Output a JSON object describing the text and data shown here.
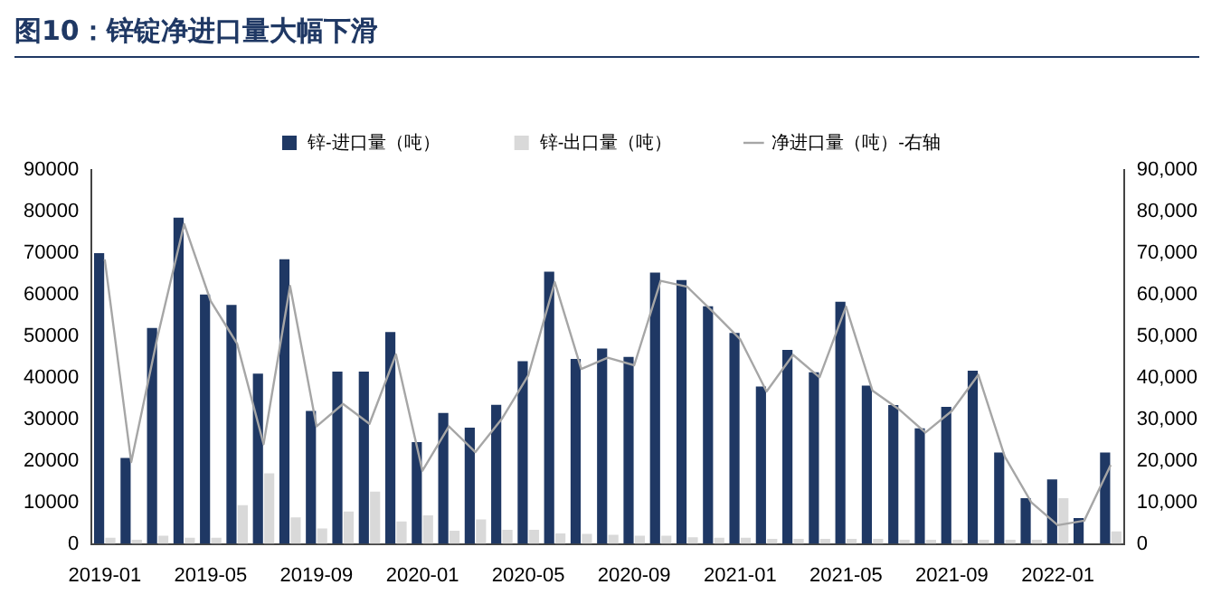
{
  "chart_data": {
    "type": "bar",
    "title": "图10：锌锭净进口量大幅下滑",
    "categories": [
      "2019-01",
      null,
      null,
      null,
      "2019-05",
      null,
      null,
      null,
      "2019-09",
      null,
      null,
      null,
      "2020-01",
      null,
      null,
      null,
      "2020-05",
      null,
      null,
      null,
      "2020-09",
      null,
      null,
      null,
      "2021-01",
      null,
      null,
      null,
      "2021-05",
      null,
      null,
      null,
      "2021-09",
      null,
      null,
      null,
      "2022-01",
      null,
      null
    ],
    "series": [
      {
        "name": "锌-进口量（吨）",
        "color": "#1f3864",
        "values": [
          70000,
          20700,
          52000,
          78500,
          60000,
          57500,
          41000,
          68500,
          32000,
          41500,
          41500,
          51000,
          24500,
          31500,
          28000,
          33500,
          44000,
          65500,
          44500,
          47000,
          45000,
          65300,
          63500,
          57200,
          50800,
          37900,
          46700,
          41300,
          58300,
          38100,
          33400,
          27800,
          33000,
          41700,
          22000,
          11000,
          15500,
          6200,
          22000
        ]
      },
      {
        "name": "锌-出口量（吨）",
        "color": "#d9d9d9",
        "values": [
          1500,
          1000,
          2000,
          1500,
          1500,
          9300,
          17000,
          6400,
          3700,
          7800,
          12600,
          5400,
          6900,
          3200,
          5900,
          3400,
          3400,
          2500,
          2400,
          2200,
          2000,
          2000,
          1600,
          1500,
          1500,
          1200,
          1200,
          1200,
          1200,
          1200,
          1000,
          1000,
          1000,
          1000,
          1000,
          1000,
          11000,
          null,
          3000
        ]
      },
      {
        "name": "净进口量（吨）-右轴",
        "color": "#a6a6a6",
        "type": "line",
        "axis": "y2",
        "values": [
          68500,
          19700,
          50000,
          77000,
          58500,
          48200,
          24000,
          62100,
          28300,
          33700,
          28900,
          45600,
          17600,
          28300,
          22100,
          30100,
          40600,
          63000,
          42100,
          44800,
          43000,
          63300,
          61900,
          55700,
          49300,
          36700,
          45500,
          40100,
          57100,
          36900,
          32400,
          26800,
          32000,
          40700,
          21000,
          10000,
          4500,
          5600,
          19000
        ]
      }
    ],
    "ylim": [
      0,
      90000
    ],
    "yticks": [
      0,
      10000,
      20000,
      30000,
      40000,
      50000,
      60000,
      70000,
      80000,
      90000
    ],
    "y2lim": [
      0,
      90000
    ],
    "y2ticks": [
      {
        "value": 0,
        "label": "0"
      },
      {
        "value": 10000,
        "label": "10,000"
      },
      {
        "value": 20000,
        "label": "20,000"
      },
      {
        "value": 30000,
        "label": "30,000"
      },
      {
        "value": 40000,
        "label": "40,000"
      },
      {
        "value": 50000,
        "label": "50,000"
      },
      {
        "value": 60000,
        "label": "60,000"
      },
      {
        "value": 70000,
        "label": "70,000"
      },
      {
        "value": 80000,
        "label": "80,000"
      },
      {
        "value": 90000,
        "label": "90,000"
      }
    ],
    "grid": false,
    "legend": "top",
    "marker": "none",
    "line_style": "solid"
  }
}
